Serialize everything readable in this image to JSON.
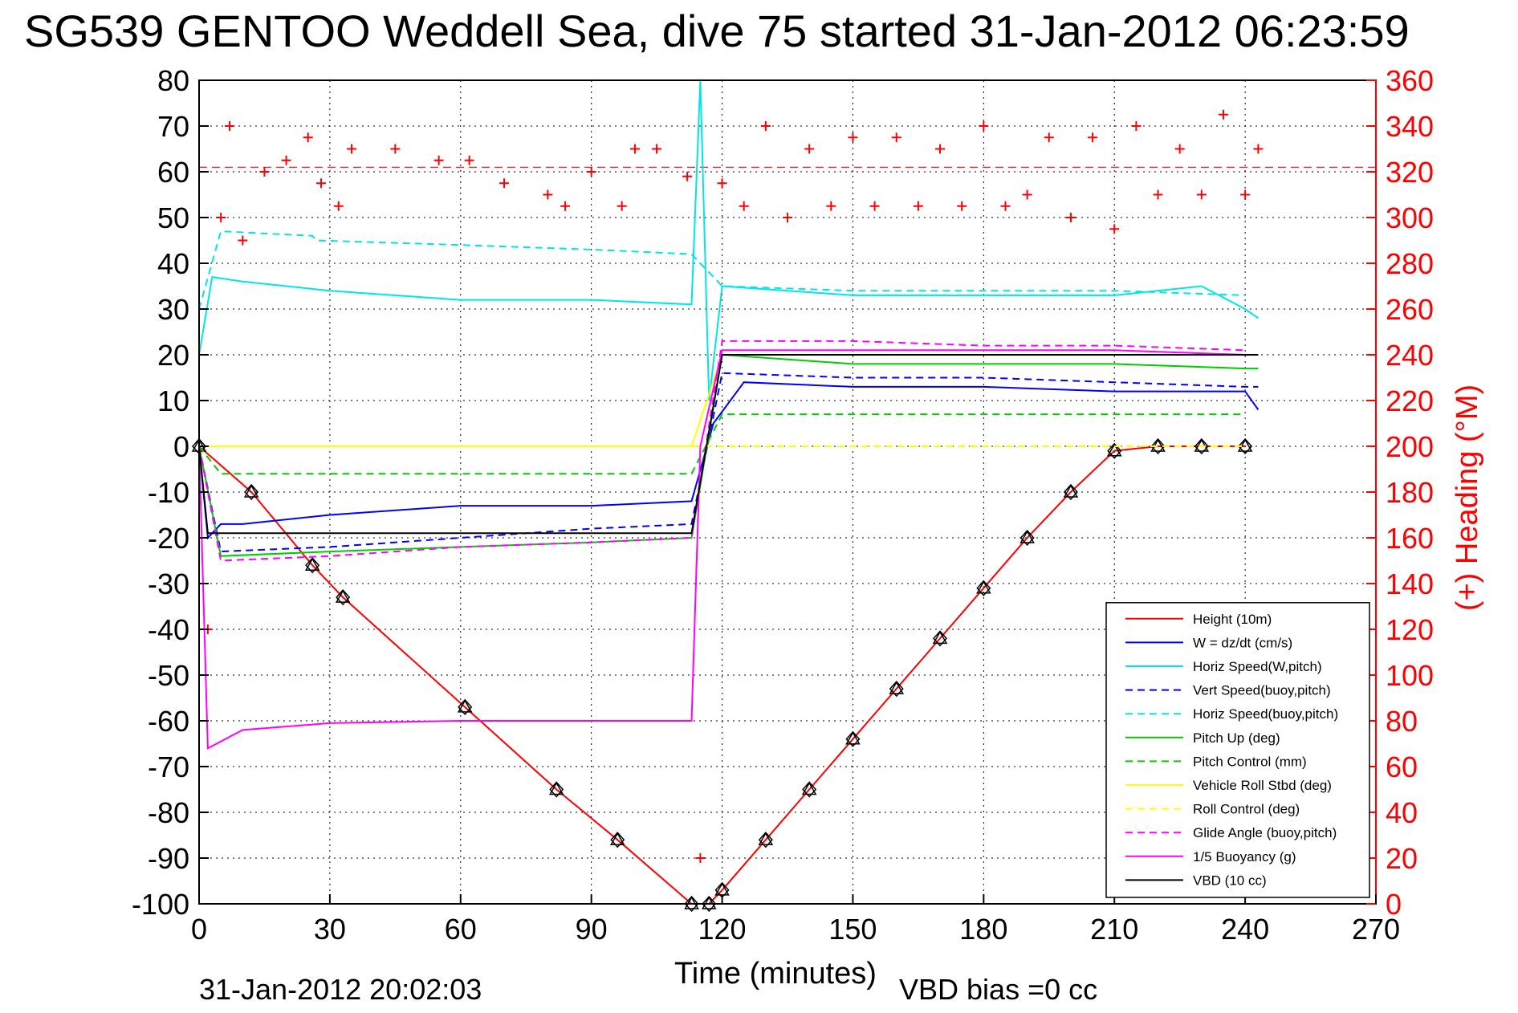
{
  "chart_data": {
    "type": "line",
    "title": "SG539 GENTOO Weddell Sea, dive 75 started 31-Jan-2012 06:23:59",
    "xlabel": "Time (minutes)",
    "ylabel_right": "(+) Heading (°M)",
    "xlim": [
      0,
      270
    ],
    "ylim": [
      -100,
      80
    ],
    "ylim_right": [
      0,
      360
    ],
    "xticks": [
      0,
      30,
      60,
      90,
      120,
      150,
      180,
      210,
      240,
      270
    ],
    "yticks": [
      -100,
      -90,
      -80,
      -70,
      -60,
      -50,
      -40,
      -30,
      -20,
      -10,
      0,
      10,
      20,
      30,
      40,
      50,
      60,
      70,
      80
    ],
    "yticks_right": [
      0,
      20,
      40,
      60,
      80,
      100,
      120,
      140,
      160,
      180,
      200,
      220,
      240,
      260,
      280,
      300,
      320,
      340,
      360
    ],
    "grid": true,
    "legend_position": "bottom-right",
    "series": [
      {
        "name": "Height (10m)",
        "color": "#ff0000",
        "style": "solid",
        "marker": "diamond-triangle",
        "x": [
          0,
          12,
          26,
          33,
          61,
          82,
          96,
          113,
          117,
          120,
          130,
          140,
          150,
          160,
          170,
          180,
          190,
          200,
          210,
          220,
          230,
          240
        ],
        "y": [
          0,
          -10,
          -26,
          -33,
          -57,
          -75,
          -86,
          -100,
          -100,
          -97,
          -86,
          -75,
          -64,
          -53,
          -42,
          -31,
          -20,
          -10,
          -1,
          0,
          0,
          0
        ]
      },
      {
        "name": "W = dz/dt (cm/s)",
        "color": "#0000ff",
        "style": "solid",
        "x": [
          0,
          2,
          5,
          10,
          30,
          60,
          90,
          113,
          118,
          125,
          150,
          180,
          210,
          240,
          243
        ],
        "y": [
          0,
          -20,
          -17,
          -17,
          -15,
          -13,
          -13,
          -12,
          5,
          14,
          13,
          13,
          12,
          12,
          8
        ]
      },
      {
        "name": "Horiz Speed(W,pitch)",
        "color": "#00e5e5",
        "style": "solid",
        "x": [
          0,
          3,
          10,
          30,
          60,
          90,
          113,
          115,
          117,
          120,
          150,
          180,
          210,
          230,
          240,
          243
        ],
        "y": [
          20,
          37,
          36,
          34,
          32,
          32,
          31,
          80,
          10,
          35,
          33,
          33,
          33,
          35,
          30,
          28
        ]
      },
      {
        "name": "Vert Speed(buoy,pitch)",
        "color": "#0000ff",
        "style": "dashed",
        "x": [
          0,
          5,
          30,
          60,
          90,
          113,
          120,
          150,
          180,
          210,
          240,
          243
        ],
        "y": [
          0,
          -23,
          -22,
          -20,
          -18,
          -17,
          16,
          15,
          15,
          14,
          13,
          13
        ]
      },
      {
        "name": "Horiz Speed(buoy,pitch)",
        "color": "#00e5e5",
        "style": "dashed",
        "x": [
          0,
          5,
          26,
          27,
          60,
          90,
          113,
          120,
          150,
          180,
          210,
          240
        ],
        "y": [
          30,
          47,
          46,
          45,
          44,
          43,
          42,
          35,
          34,
          34,
          34,
          33
        ]
      },
      {
        "name": "Pitch Up (deg)",
        "color": "#00cc00",
        "style": "solid",
        "x": [
          0,
          5,
          30,
          60,
          90,
          113,
          120,
          150,
          180,
          210,
          240,
          243
        ],
        "y": [
          0,
          -24,
          -23,
          -22,
          -21,
          -20,
          20,
          18,
          18,
          18,
          17,
          17
        ]
      },
      {
        "name": "Pitch Control (mm)",
        "color": "#00cc00",
        "style": "dashed",
        "x": [
          0,
          5,
          30,
          60,
          90,
          113,
          120,
          150,
          180,
          210,
          240
        ],
        "y": [
          0,
          -6,
          -6,
          -6,
          -6,
          -6,
          7,
          7,
          7,
          7,
          7
        ]
      },
      {
        "name": "Vehicle Roll Stbd (deg)",
        "color": "#ffff00",
        "style": "solid",
        "x": [
          0,
          30,
          60,
          90,
          113,
          120,
          150,
          180,
          210,
          240,
          243
        ],
        "y": [
          0,
          0,
          0,
          0,
          0,
          20,
          20,
          20,
          20,
          20,
          20
        ]
      },
      {
        "name": "Roll Control (deg)",
        "color": "#ffff00",
        "style": "dashed",
        "x": [
          0,
          30,
          60,
          90,
          113,
          120,
          150,
          180,
          210,
          240
        ],
        "y": [
          0,
          0,
          0,
          0,
          0,
          0,
          0,
          0,
          0,
          0
        ]
      },
      {
        "name": "Glide Angle (buoy,pitch)",
        "color": "#ff00ff",
        "style": "dashed",
        "x": [
          0,
          5,
          30,
          60,
          90,
          113,
          120,
          150,
          180,
          210,
          240
        ],
        "y": [
          0,
          -25,
          -24,
          -22,
          -21,
          -20,
          23,
          23,
          22,
          22,
          21
        ]
      },
      {
        "name": "1/5 Buoyancy (g)",
        "color": "#ff00ff",
        "style": "solid",
        "x": [
          0,
          2,
          10,
          30,
          60,
          90,
          113,
          115,
          120,
          150,
          180,
          210,
          240
        ],
        "y": [
          0,
          -66,
          -62,
          -60.5,
          -60,
          -60,
          -60,
          0,
          21,
          21,
          21,
          21,
          20
        ]
      },
      {
        "name": "VBD (10 cc)",
        "color": "#000000",
        "style": "solid",
        "x": [
          0,
          2,
          30,
          60,
          90,
          113,
          120,
          150,
          180,
          210,
          240,
          243
        ],
        "y": [
          0,
          -19,
          -19,
          -19,
          -19,
          -19,
          20,
          20,
          20,
          20,
          20,
          20
        ]
      },
      {
        "name": "Heading (°M)",
        "axis": "right",
        "color": "#ff0000",
        "style": "markers-plus",
        "x": [
          2,
          5,
          7,
          10,
          15,
          20,
          25,
          28,
          32,
          35,
          45,
          55,
          62,
          70,
          80,
          84,
          90,
          97,
          100,
          105,
          112,
          115,
          120,
          125,
          130,
          135,
          140,
          145,
          150,
          155,
          160,
          165,
          170,
          175,
          180,
          185,
          190,
          195,
          200,
          205,
          210,
          215,
          220,
          225,
          230,
          235,
          240,
          243
        ],
        "y": [
          120,
          300,
          340,
          290,
          320,
          325,
          335,
          315,
          305,
          330,
          330,
          325,
          325,
          315,
          310,
          305,
          320,
          305,
          330,
          330,
          318,
          20,
          315,
          305,
          340,
          300,
          330,
          305,
          335,
          305,
          335,
          305,
          330,
          305,
          340,
          305,
          310,
          335,
          300,
          335,
          295,
          340,
          310,
          330,
          310,
          345,
          310,
          330
        ]
      }
    ],
    "heading_mean_line": 322,
    "footer_date": "31-Jan-2012 20:02:03",
    "footer_bias": "VBD bias =0 cc"
  }
}
